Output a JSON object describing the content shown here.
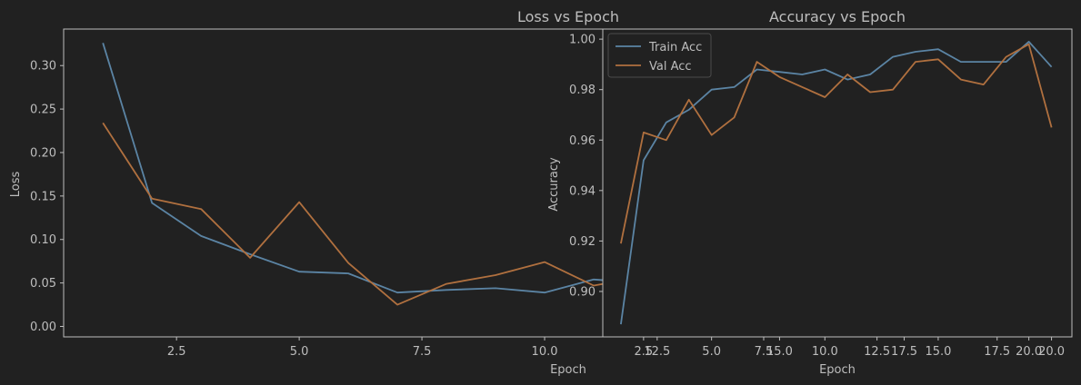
{
  "chart_data": [
    {
      "type": "line",
      "title": "Loss vs Epoch",
      "xlabel": "Epoch",
      "ylabel": "Loss",
      "xlim": [
        0.2,
        11.5
      ],
      "ylim": [
        -0.012,
        0.342
      ],
      "xticks": [
        2.5,
        5.0,
        7.5,
        10.0
      ],
      "yticks": [
        0.0,
        0.05,
        0.1,
        0.15,
        0.2,
        0.25,
        0.3
      ],
      "grid": false,
      "legend": "none",
      "series": [
        {
          "color": "#5b84a4",
          "x": [
            1,
            2,
            3,
            4,
            5,
            6,
            7,
            8,
            9,
            10,
            11,
            11.5
          ],
          "y": [
            0.326,
            0.142,
            0.104,
            0.083,
            0.063,
            0.061,
            0.039,
            0.042,
            0.044,
            0.039,
            0.054,
            0.052
          ]
        },
        {
          "color": "#b0703f",
          "x": [
            1,
            2,
            3,
            4,
            5,
            6,
            7,
            8,
            9,
            10,
            11,
            11.5
          ],
          "y": [
            0.234,
            0.147,
            0.135,
            0.079,
            0.143,
            0.073,
            0.025,
            0.049,
            0.059,
            0.074,
            0.047,
            0.052
          ]
        }
      ]
    },
    {
      "type": "line",
      "title": "Accuracy vs Epoch",
      "xlabel": "Epoch",
      "ylabel": "Accuracy",
      "xlim": [
        0.2,
        20.9
      ],
      "ylim": [
        0.882,
        1.004
      ],
      "xtick_labels": [
        {
          "x": 2.0,
          "label": "2.5"
        },
        {
          "x": 2.6,
          "label": "12.5"
        },
        {
          "x": 5.0,
          "label": "5.0"
        },
        {
          "x": 7.3,
          "label": "7.5"
        },
        {
          "x": 8.0,
          "label": "15.0"
        },
        {
          "x": 10.0,
          "label": "10.0"
        },
        {
          "x": 12.3,
          "label": "12.5"
        },
        {
          "x": 13.5,
          "label": "17.5"
        },
        {
          "x": 15.0,
          "label": "15.0"
        },
        {
          "x": 17.6,
          "label": "17.5"
        },
        {
          "x": 19.0,
          "label": "20.0"
        },
        {
          "x": 20.0,
          "label": "20.0"
        }
      ],
      "yticks": [
        0.9,
        0.92,
        0.94,
        0.96,
        0.98,
        1.0
      ],
      "grid": false,
      "legend": "top-left",
      "series": [
        {
          "name": "Train Acc",
          "color": "#5b84a4",
          "x": [
            1,
            2,
            3,
            4,
            5,
            6,
            7,
            8,
            9,
            10,
            11,
            12,
            13,
            14,
            15,
            16,
            17,
            18,
            19,
            20
          ],
          "y": [
            0.887,
            0.952,
            0.967,
            0.972,
            0.98,
            0.981,
            0.988,
            0.987,
            0.986,
            0.988,
            0.984,
            0.986,
            0.993,
            0.995,
            0.996,
            0.991,
            0.991,
            0.991,
            0.999,
            0.989
          ]
        },
        {
          "name": "Val Acc",
          "color": "#b0703f",
          "x": [
            1,
            2,
            3,
            4,
            5,
            6,
            7,
            8,
            9,
            10,
            11,
            12,
            13,
            14,
            15,
            16,
            17,
            18,
            19,
            20
          ],
          "y": [
            0.919,
            0.963,
            0.96,
            0.976,
            0.962,
            0.969,
            0.991,
            0.985,
            0.981,
            0.977,
            0.986,
            0.979,
            0.98,
            0.991,
            0.992,
            0.984,
            0.982,
            0.993,
            0.998,
            0.965
          ]
        }
      ]
    }
  ]
}
